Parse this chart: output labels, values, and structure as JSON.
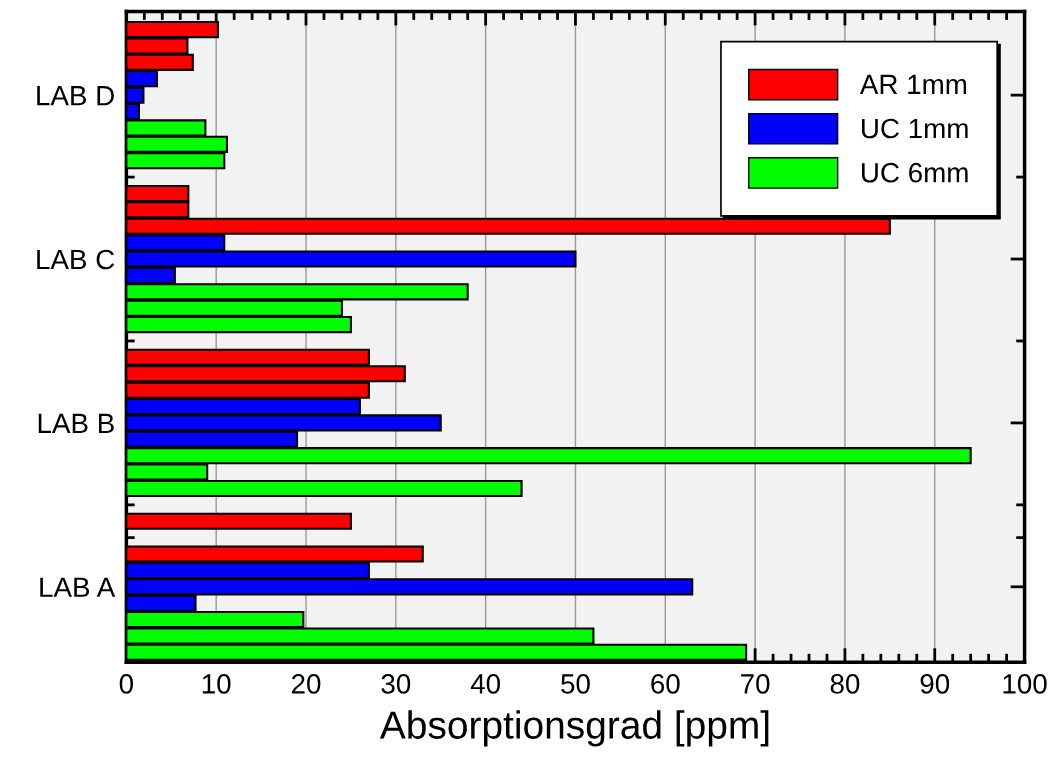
{
  "chart_data": {
    "type": "bar",
    "orientation": "horizontal",
    "xlabel": "Absorptionsgrad [ppm]",
    "categories": [
      null,
      null,
      null,
      null,
      "LAB D",
      null,
      null,
      null,
      null,
      null,
      null,
      null,
      null,
      null,
      "LAB C",
      null,
      null,
      null,
      null,
      null,
      null,
      null,
      null,
      null,
      "LAB B",
      null,
      null,
      null,
      null,
      null,
      null,
      null,
      null,
      null,
      "LAB A",
      null,
      null,
      null,
      null
    ],
    "series": [
      {
        "name": "AR 1mm",
        "color": "#ff0000",
        "values": [
          10.2,
          6.8,
          7.4,
          null,
          null,
          null,
          null,
          null,
          null,
          null,
          6.9,
          6.9,
          85,
          null,
          null,
          null,
          null,
          null,
          null,
          null,
          27,
          31,
          27,
          null,
          null,
          null,
          null,
          null,
          null,
          null,
          25,
          null,
          33,
          null,
          null,
          null,
          null,
          null,
          null
        ]
      },
      {
        "name": "UC 1mm",
        "color": "#0000ff",
        "values": [
          null,
          null,
          null,
          3.4,
          1.9,
          1.4,
          null,
          null,
          null,
          null,
          null,
          null,
          null,
          10.9,
          50,
          5.4,
          null,
          null,
          null,
          null,
          null,
          null,
          null,
          26,
          35,
          19,
          null,
          null,
          null,
          null,
          null,
          null,
          null,
          27,
          63,
          7.7,
          null,
          null,
          null
        ]
      },
      {
        "name": "UC 6mm",
        "color": "#00ff00",
        "values": [
          null,
          null,
          null,
          null,
          null,
          null,
          8.8,
          11.2,
          10.9,
          null,
          null,
          null,
          null,
          null,
          null,
          null,
          38,
          24,
          25,
          null,
          null,
          null,
          null,
          null,
          null,
          null,
          94,
          9,
          44,
          null,
          null,
          null,
          null,
          null,
          null,
          null,
          19.7,
          52,
          69
        ]
      }
    ],
    "xlim": [
      0,
      100
    ],
    "xticks": [
      0,
      10,
      20,
      30,
      40,
      50,
      60,
      70,
      80,
      90,
      100
    ],
    "grid": "x",
    "legend": "top right"
  }
}
